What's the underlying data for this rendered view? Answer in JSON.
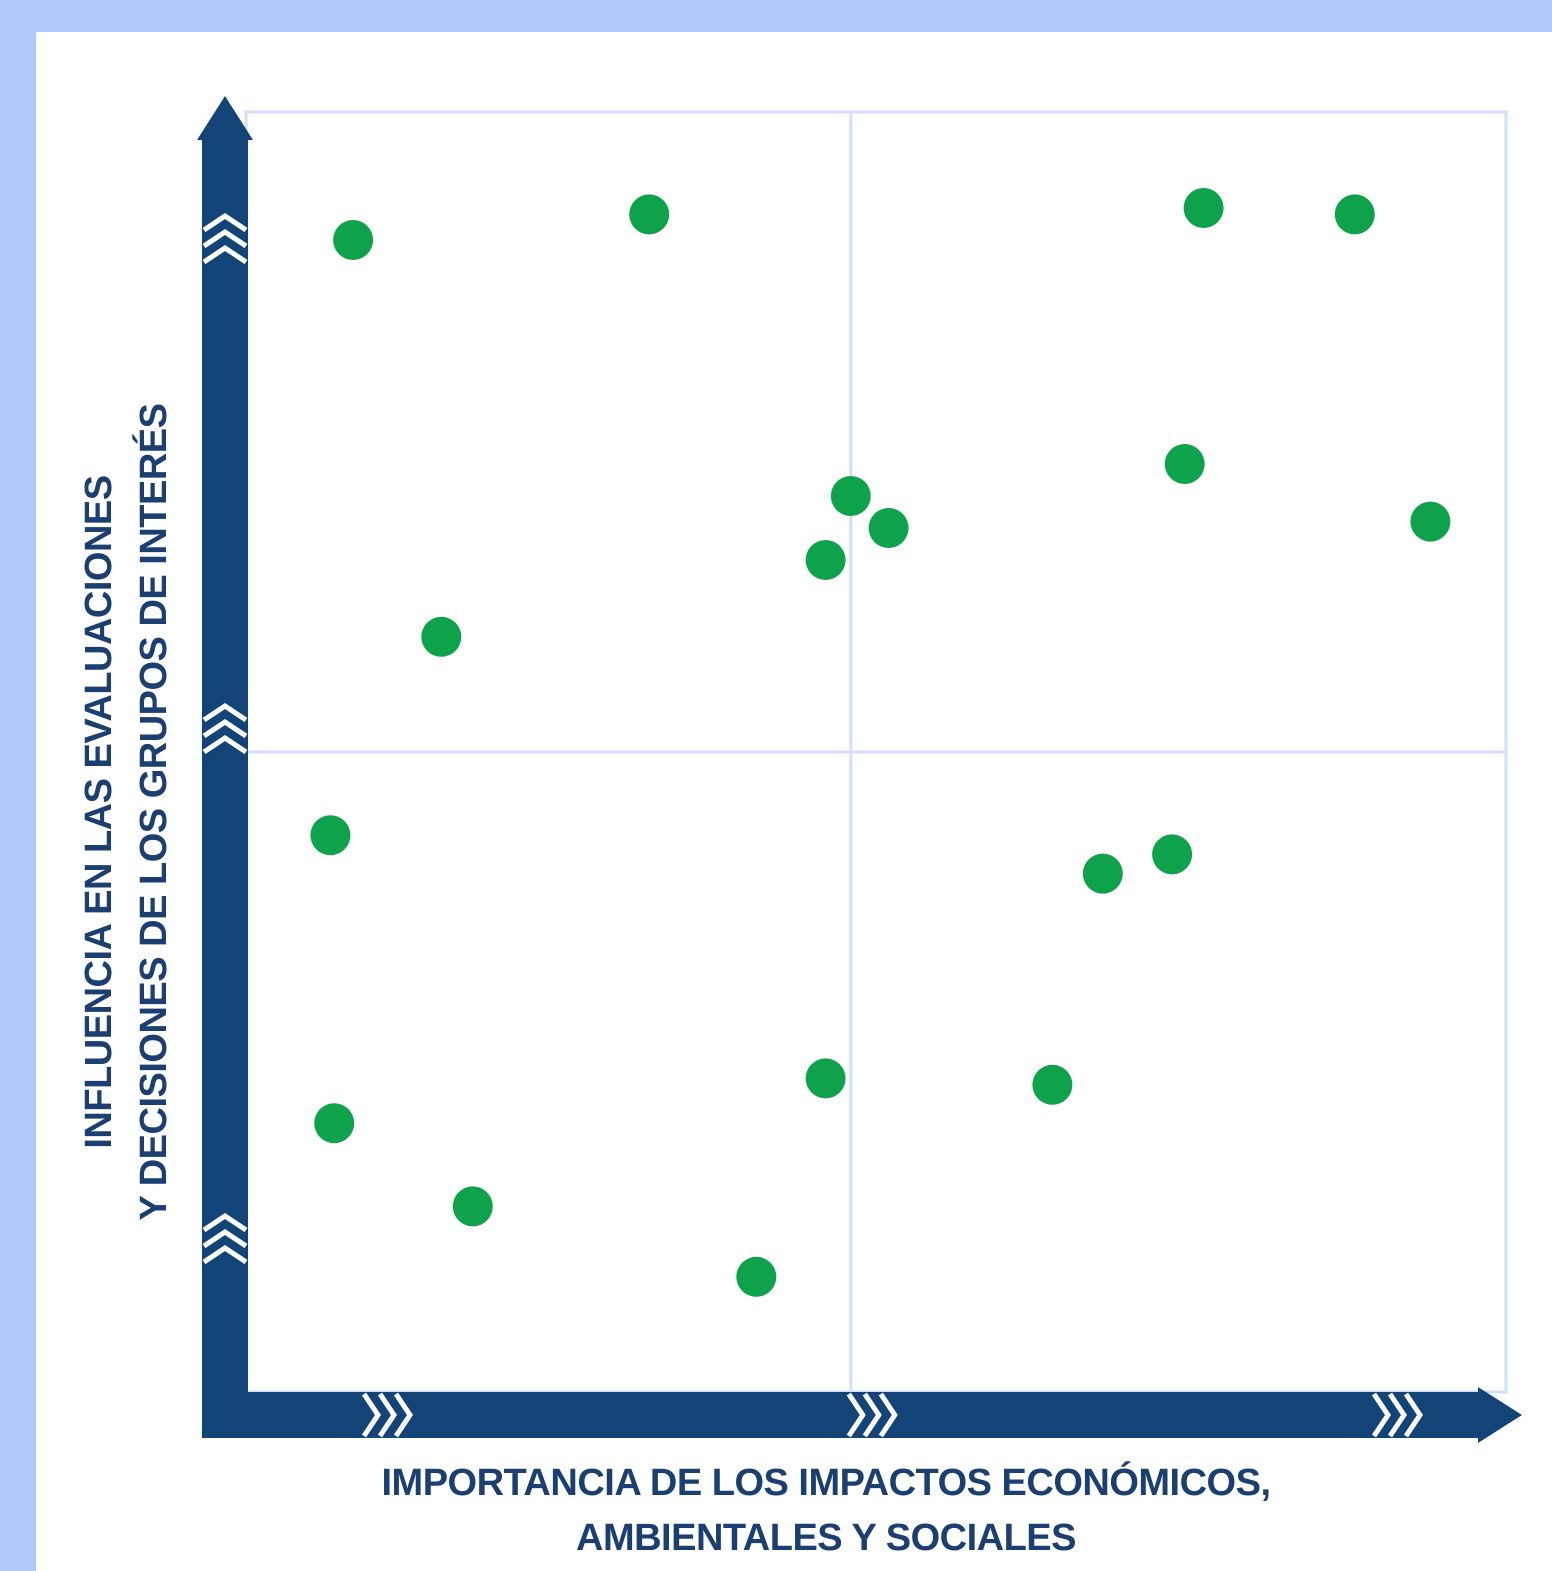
{
  "chart_data": {
    "type": "scatter",
    "title": "",
    "xlabel_lines": [
      "IMPORTANCIA DE LOS IMPACTOS ECONÓMICOS,",
      "AMBIENTALES Y SOCIALES"
    ],
    "ylabel_lines": [
      "INFLUENCIA EN LAS EVALUACIONES",
      "Y DECISIONES DE LOS GRUPOS DE INTERÉS"
    ],
    "xlim": [
      0,
      1
    ],
    "ylim": [
      0,
      1
    ],
    "quadrant_divider": [
      0.48,
      0.5
    ],
    "ticks": "none",
    "grid": "quadrant lines",
    "legend": "none",
    "points": [
      {
        "x": 0.085,
        "y": 0.9
      },
      {
        "x": 0.32,
        "y": 0.92
      },
      {
        "x": 0.76,
        "y": 0.925
      },
      {
        "x": 0.88,
        "y": 0.92
      },
      {
        "x": 0.745,
        "y": 0.725
      },
      {
        "x": 0.94,
        "y": 0.68
      },
      {
        "x": 0.48,
        "y": 0.7
      },
      {
        "x": 0.51,
        "y": 0.675
      },
      {
        "x": 0.46,
        "y": 0.65
      },
      {
        "x": 0.155,
        "y": 0.59
      },
      {
        "x": 0.067,
        "y": 0.435
      },
      {
        "x": 0.68,
        "y": 0.405
      },
      {
        "x": 0.735,
        "y": 0.42
      },
      {
        "x": 0.46,
        "y": 0.245
      },
      {
        "x": 0.64,
        "y": 0.24
      },
      {
        "x": 0.07,
        "y": 0.21
      },
      {
        "x": 0.18,
        "y": 0.145
      },
      {
        "x": 0.405,
        "y": 0.09
      }
    ]
  },
  "colors": {
    "background": "#b3c8fc",
    "panel": "#ffffff",
    "axis": "#134477",
    "grid": "#cfe0f7",
    "point": "#0ea24a",
    "label": "#1a3f70"
  }
}
